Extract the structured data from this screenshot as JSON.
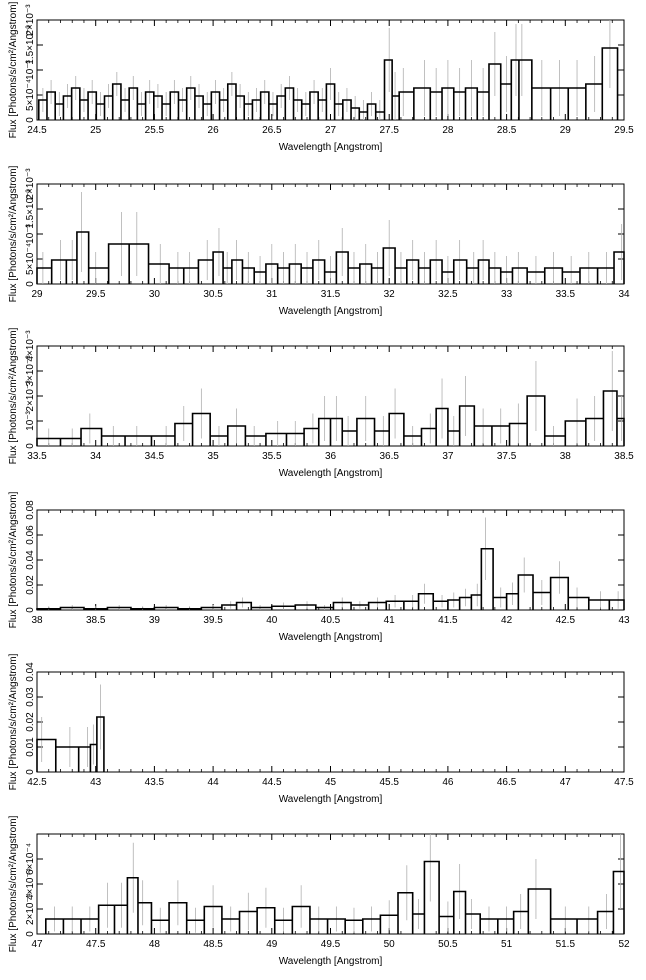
{
  "chart_data": [
    {
      "type": "line",
      "xlabel": "Wavelength [Angstrom]",
      "ylabel": "Flux [Photons/s/cm²/Angstrom]",
      "xlim": [
        24.5,
        29.5
      ],
      "ylim": [
        0,
        0.0025
      ],
      "xticks": [
        "24.5",
        "25",
        "25.5",
        "26",
        "26.5",
        "27",
        "27.5",
        "28",
        "28.5",
        "29",
        "29.5"
      ],
      "yticks": [
        "0",
        "5×10⁻⁴",
        "10⁻³",
        "1.5×10⁻³",
        "2×10⁻³"
      ],
      "series": [
        {
          "x": [
            24.55,
            24.62,
            24.69,
            24.76,
            24.83,
            24.9,
            24.97,
            25.04,
            25.11,
            25.18,
            25.25,
            25.32,
            25.39,
            25.46,
            25.53,
            25.6,
            25.67,
            25.74,
            25.81,
            25.88,
            25.95,
            26.02,
            26.09,
            26.16,
            26.23,
            26.3,
            26.37,
            26.44,
            26.51,
            26.58,
            26.65,
            26.72,
            26.79,
            26.86,
            26.93,
            27.0,
            27.07,
            27.14,
            27.21,
            27.28,
            27.35,
            27.42,
            27.5,
            27.55,
            27.62,
            27.8,
            27.9,
            28.0,
            28.1,
            28.2,
            28.3,
            28.4,
            28.5,
            28.58,
            28.63,
            28.8,
            28.95,
            29.1,
            29.25,
            29.38
          ],
          "y": [
            0.0005,
            0.0007,
            0.0004,
            0.0006,
            0.0008,
            0.0005,
            0.0007,
            0.0004,
            0.0006,
            0.0009,
            0.0005,
            0.0008,
            0.0004,
            0.0007,
            0.0006,
            0.0004,
            0.0007,
            0.0005,
            0.0008,
            0.0006,
            0.0004,
            0.0007,
            0.0005,
            0.0009,
            0.0006,
            0.0004,
            0.0005,
            0.0007,
            0.0004,
            0.0006,
            0.0008,
            0.0005,
            0.0004,
            0.0007,
            0.0005,
            0.0009,
            0.0004,
            0.0005,
            0.0003,
            0.0002,
            0.0004,
            0.0002,
            0.0015,
            0.0006,
            0.0007,
            0.0008,
            0.0007,
            0.0008,
            0.0007,
            0.0008,
            0.0007,
            0.0014,
            0.0009,
            0.0015,
            0.0015,
            0.0008,
            0.0008,
            0.0008,
            0.0009,
            0.0018
          ],
          "err": [
            0.0003,
            0.0003,
            0.0003,
            0.0003,
            0.0003,
            0.0003,
            0.0003,
            0.0003,
            0.0003,
            0.0003,
            0.0003,
            0.0003,
            0.0003,
            0.0003,
            0.0003,
            0.0003,
            0.0003,
            0.0003,
            0.0003,
            0.0003,
            0.0003,
            0.0003,
            0.0003,
            0.0003,
            0.0003,
            0.0003,
            0.0003,
            0.0003,
            0.0003,
            0.0003,
            0.0003,
            0.0003,
            0.0003,
            0.0003,
            0.0003,
            0.0004,
            0.0003,
            0.0003,
            0.0003,
            0.0003,
            0.0003,
            0.0003,
            0.0008,
            0.0006,
            0.0006,
            0.0007,
            0.0006,
            0.0007,
            0.0006,
            0.0007,
            0.0006,
            0.0008,
            0.0007,
            0.0009,
            0.0009,
            0.0007,
            0.0007,
            0.0007,
            0.0007,
            0.001
          ]
        }
      ]
    },
    {
      "type": "line",
      "xlabel": "Wavelength [Angstrom]",
      "ylabel": "Flux [Photons/s/cm²/Angstrom]",
      "xlim": [
        29,
        34
      ],
      "ylim": [
        0,
        0.0025
      ],
      "xticks": [
        "29",
        "29.5",
        "30",
        "30.5",
        "31",
        "31.5",
        "32",
        "32.5",
        "33",
        "33.5",
        "34"
      ],
      "yticks": [
        "0",
        "5×10⁻⁴",
        "10⁻³",
        "1.5×10⁻³",
        "2×10⁻³"
      ],
      "series": [
        {
          "x": [
            29.05,
            29.2,
            29.3,
            29.38,
            29.5,
            29.72,
            29.85,
            30.05,
            30.2,
            30.3,
            30.45,
            30.55,
            30.62,
            30.7,
            30.8,
            30.9,
            31.0,
            31.1,
            31.2,
            31.3,
            31.4,
            31.5,
            31.6,
            31.7,
            31.8,
            31.9,
            32.0,
            32.1,
            32.2,
            32.3,
            32.4,
            32.5,
            32.6,
            32.72,
            32.8,
            32.9,
            33.0,
            33.1,
            33.25,
            33.4,
            33.55,
            33.7,
            33.85,
            33.98
          ],
          "y": [
            0.0004,
            0.0006,
            0.0006,
            0.0013,
            0.0004,
            0.001,
            0.001,
            0.0005,
            0.0004,
            0.0004,
            0.0006,
            0.0008,
            0.0004,
            0.0006,
            0.0004,
            0.0003,
            0.0005,
            0.0004,
            0.0005,
            0.0004,
            0.0006,
            0.0003,
            0.0008,
            0.0004,
            0.0005,
            0.0004,
            0.0009,
            0.0004,
            0.0006,
            0.0004,
            0.0006,
            0.0003,
            0.0006,
            0.0004,
            0.0006,
            0.0004,
            0.0003,
            0.0004,
            0.0003,
            0.0004,
            0.0003,
            0.0004,
            0.0004,
            0.0008
          ],
          "err": [
            0.0004,
            0.0005,
            0.0005,
            0.001,
            0.0004,
            0.0008,
            0.0008,
            0.0005,
            0.0004,
            0.0004,
            0.0005,
            0.0006,
            0.0004,
            0.0005,
            0.0004,
            0.0004,
            0.0005,
            0.0004,
            0.0005,
            0.0004,
            0.0005,
            0.0004,
            0.0006,
            0.0004,
            0.0005,
            0.0004,
            0.0007,
            0.0004,
            0.0005,
            0.0004,
            0.0005,
            0.0004,
            0.0005,
            0.0004,
            0.0005,
            0.0004,
            0.0004,
            0.0004,
            0.0004,
            0.0004,
            0.0004,
            0.0004,
            0.0004,
            0.0007
          ]
        }
      ]
    },
    {
      "type": "line",
      "xlabel": "Wavelength [Angstrom]",
      "ylabel": "Flux [Photons/s/cm²/Angstrom]",
      "xlim": [
        33.5,
        38.5
      ],
      "ylim": [
        0,
        0.004
      ],
      "xticks": [
        "33.5",
        "34",
        "34.5",
        "35",
        "35.5",
        "36",
        "36.5",
        "37",
        "37.5",
        "38",
        "38.5"
      ],
      "yticks": [
        "0",
        "10⁻³",
        "2×10⁻³",
        "3×10⁻³",
        "4×10⁻³"
      ],
      "series": [
        {
          "x": [
            33.6,
            33.8,
            33.95,
            34.15,
            34.35,
            34.6,
            34.75,
            34.9,
            35.05,
            35.2,
            35.35,
            35.55,
            35.7,
            35.85,
            35.95,
            36.05,
            36.15,
            36.3,
            36.45,
            36.55,
            36.7,
            36.85,
            36.95,
            37.05,
            37.15,
            37.3,
            37.45,
            37.6,
            37.75,
            37.9,
            38.1,
            38.25,
            38.4,
            38.48
          ],
          "y": [
            0.0003,
            0.0003,
            0.0007,
            0.0004,
            0.0004,
            0.0004,
            0.0009,
            0.0013,
            0.0004,
            0.0008,
            0.0004,
            0.0005,
            0.0005,
            0.0007,
            0.0011,
            0.0011,
            0.0006,
            0.0011,
            0.0006,
            0.0013,
            0.0004,
            0.0007,
            0.0015,
            0.0006,
            0.0016,
            0.0008,
            0.0008,
            0.0009,
            0.002,
            0.0004,
            0.001,
            0.0011,
            0.0022,
            0.0011
          ],
          "err": [
            0.0004,
            0.0004,
            0.0006,
            0.0004,
            0.0004,
            0.0004,
            0.0007,
            0.001,
            0.0004,
            0.0007,
            0.0004,
            0.0005,
            0.0005,
            0.0006,
            0.0009,
            0.0009,
            0.0006,
            0.0009,
            0.0006,
            0.001,
            0.0004,
            0.0006,
            0.0012,
            0.0006,
            0.0012,
            0.0007,
            0.0007,
            0.0008,
            0.0014,
            0.0004,
            0.0009,
            0.0009,
            0.0016,
            0.0009
          ]
        }
      ]
    },
    {
      "type": "line",
      "xlabel": "Wavelength [Angstrom]",
      "ylabel": "Flux [Photons/s/cm²/Angstrom]",
      "xlim": [
        38,
        43
      ],
      "ylim": [
        0,
        0.08
      ],
      "xticks": [
        "38",
        "38.5",
        "39",
        "39.5",
        "40",
        "40.5",
        "41",
        "41.5",
        "42",
        "42.5",
        "43"
      ],
      "yticks": [
        "0",
        "0.02",
        "0.04",
        "0.06",
        "0.08"
      ],
      "series": [
        {
          "x": [
            38.1,
            38.3,
            38.5,
            38.7,
            38.9,
            39.1,
            39.3,
            39.5,
            39.65,
            39.75,
            39.9,
            40.1,
            40.3,
            40.45,
            40.6,
            40.75,
            40.9,
            41.05,
            41.2,
            41.3,
            41.45,
            41.55,
            41.65,
            41.75,
            41.82,
            41.95,
            42.05,
            42.15,
            42.3,
            42.45,
            42.6,
            42.8,
            42.95
          ],
          "y": [
            0.001,
            0.002,
            0.001,
            0.002,
            0.001,
            0.002,
            0.001,
            0.002,
            0.004,
            0.006,
            0.002,
            0.003,
            0.004,
            0.002,
            0.006,
            0.004,
            0.006,
            0.007,
            0.007,
            0.013,
            0.007,
            0.008,
            0.01,
            0.012,
            0.049,
            0.01,
            0.013,
            0.028,
            0.014,
            0.026,
            0.01,
            0.008,
            0.008
          ],
          "err": [
            0.002,
            0.002,
            0.002,
            0.002,
            0.002,
            0.002,
            0.002,
            0.002,
            0.003,
            0.004,
            0.002,
            0.003,
            0.003,
            0.002,
            0.004,
            0.003,
            0.004,
            0.005,
            0.005,
            0.008,
            0.005,
            0.006,
            0.007,
            0.009,
            0.025,
            0.008,
            0.009,
            0.014,
            0.01,
            0.013,
            0.008,
            0.007,
            0.007
          ]
        }
      ]
    },
    {
      "type": "line",
      "xlabel": "Wavelength [Angstrom]",
      "ylabel": "Flux [Photons/s/cm²/Angstrom]",
      "xlim": [
        42.5,
        47.5
      ],
      "ylim": [
        0,
        0.04
      ],
      "xticks": [
        "42.5",
        "43",
        "43.5",
        "44",
        "44.5",
        "45",
        "45.5",
        "46",
        "46.5",
        "47",
        "47.5"
      ],
      "yticks": [
        "0",
        "0.01",
        "0.02",
        "0.03",
        "0.04"
      ],
      "series": [
        {
          "x": [
            42.54,
            42.78,
            42.93,
            42.98,
            43.04
          ],
          "y": [
            0.013,
            0.01,
            0.01,
            0.011,
            0.022
          ],
          "err": [
            0.009,
            0.008,
            0.008,
            0.008,
            0.013
          ]
        }
      ]
    },
    {
      "type": "line",
      "xlabel": "Wavelength [Angstrom]",
      "ylabel": "Flux [Photons/s/cm²/Angstrom]",
      "xlim": [
        47,
        52
      ],
      "ylim": [
        0,
        0.0008
      ],
      "xticks": [
        "47",
        "47.5",
        "48",
        "48.5",
        "49",
        "49.5",
        "50",
        "50.5",
        "51",
        "51.5",
        "52"
      ],
      "yticks": [
        "0",
        "2×10⁻⁴",
        "4×10⁻⁴",
        "6×10⁻⁴"
      ],
      "series": [
        {
          "x": [
            47.15,
            47.3,
            47.45,
            47.6,
            47.72,
            47.82,
            47.9,
            48.05,
            48.2,
            48.35,
            48.5,
            48.65,
            48.8,
            48.95,
            49.1,
            49.25,
            49.4,
            49.55,
            49.7,
            49.85,
            50.0,
            50.15,
            50.25,
            50.35,
            50.5,
            50.6,
            50.7,
            50.85,
            51.0,
            51.12,
            51.25,
            51.5,
            51.7,
            51.85,
            51.97
          ],
          "y": [
            0.00012,
            0.00012,
            0.00012,
            0.00023,
            0.00023,
            0.00045,
            0.00025,
            0.00011,
            0.00025,
            0.00011,
            0.00022,
            0.00012,
            0.00018,
            0.00021,
            0.00011,
            0.00022,
            0.00012,
            0.00012,
            0.00011,
            0.00012,
            0.00015,
            0.00033,
            0.00016,
            0.00058,
            0.00014,
            0.00034,
            0.00016,
            0.00012,
            0.00012,
            0.00018,
            0.00036,
            0.00012,
            0.00012,
            0.00018,
            0.0005
          ],
          "err": [
            0.0001,
            0.0001,
            0.0001,
            0.00018,
            0.00018,
            0.00028,
            0.00018,
            0.0001,
            0.00018,
            0.0001,
            0.00017,
            0.0001,
            0.00015,
            0.00016,
            0.0001,
            0.00017,
            0.0001,
            0.0001,
            0.0001,
            0.0001,
            0.00012,
            0.00022,
            0.00012,
            0.00032,
            0.00012,
            0.00022,
            0.00012,
            0.0001,
            0.0001,
            0.00014,
            0.00024,
            0.0001,
            0.0001,
            0.00014,
            0.0003
          ]
        }
      ]
    }
  ]
}
